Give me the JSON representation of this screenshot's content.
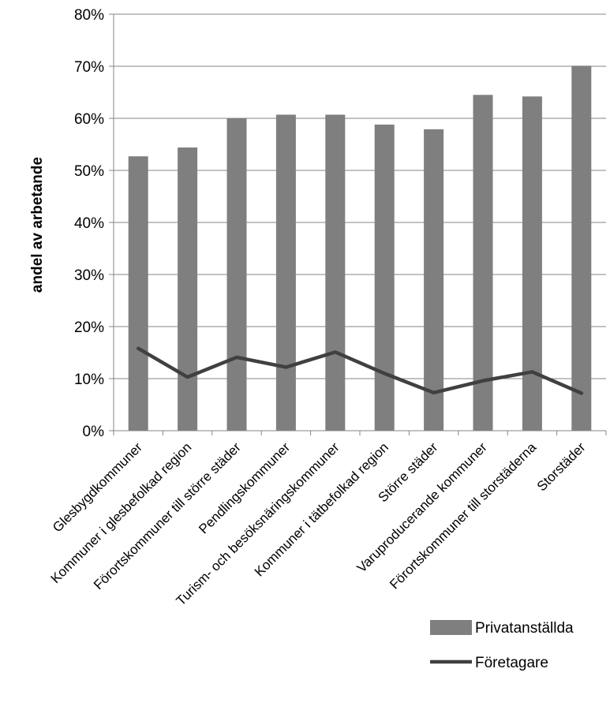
{
  "chart_data": {
    "type": "bar",
    "categories": [
      "Glesbygdkommuner",
      "Kommuner i glesbefolkad region",
      "Förortskommuner till större städer",
      "Pendlingskommuner",
      "Turism- och besöksnäringskommuner",
      "Kommuner i tätbefolkad region",
      "Större städer",
      "Varuproducerande kommuner",
      "Förortskommuner till storstäderna",
      "Storstäder"
    ],
    "series": [
      {
        "name": "Privatanställda",
        "type": "bar",
        "color": "#7f7f7f",
        "values": [
          0.527,
          0.544,
          0.6,
          0.607,
          0.607,
          0.588,
          0.579,
          0.645,
          0.642,
          0.701
        ]
      },
      {
        "name": "Företagare",
        "type": "line",
        "color": "#404040",
        "values": [
          0.158,
          0.103,
          0.141,
          0.122,
          0.151,
          0.11,
          0.073,
          0.096,
          0.113,
          0.072
        ]
      }
    ],
    "ylabel": "andel av arbetande",
    "xlabel": "",
    "ylim": [
      0,
      0.8
    ],
    "yticks": [
      "0%",
      "10%",
      "20%",
      "30%",
      "40%",
      "50%",
      "60%",
      "70%",
      "80%"
    ],
    "grid": true,
    "legend": "bottom-right"
  }
}
